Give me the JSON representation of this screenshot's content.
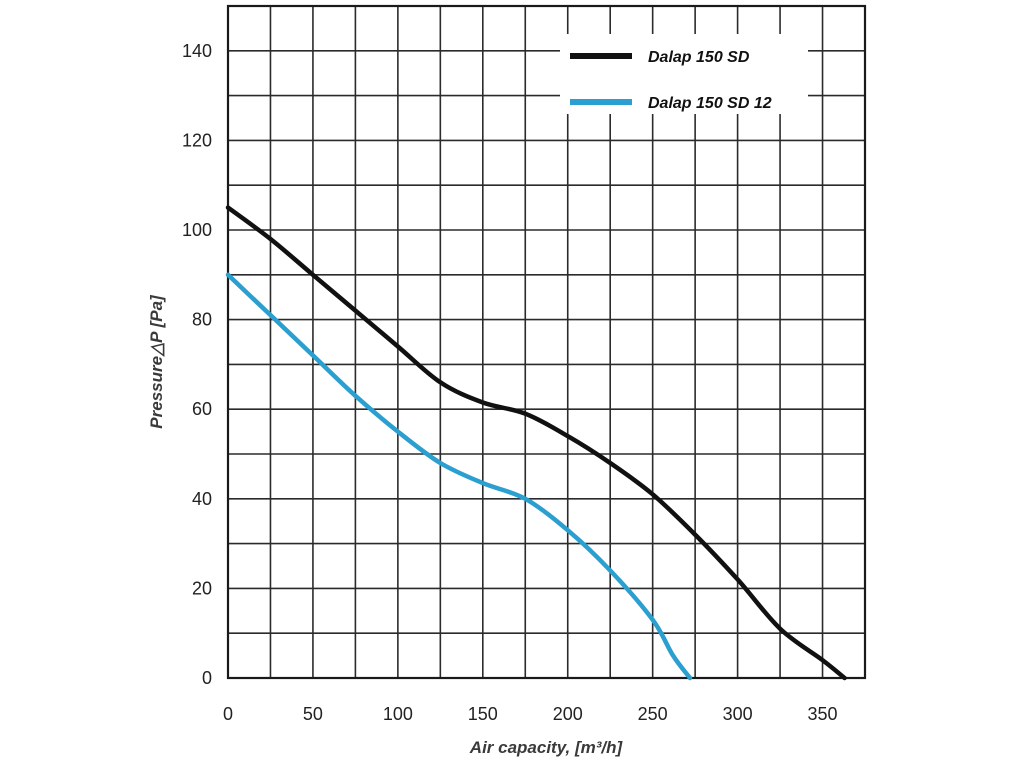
{
  "chart_data": {
    "type": "line",
    "title": "",
    "xlabel": "Air capacity, [m³/h]",
    "ylabel": "Pressure△P [Pa]",
    "xlim": [
      0,
      375
    ],
    "ylim": [
      0,
      150
    ],
    "x_ticks": [
      0,
      50,
      100,
      150,
      200,
      250,
      300,
      350
    ],
    "y_ticks": [
      0,
      20,
      40,
      60,
      80,
      100,
      120,
      140
    ],
    "grid": true,
    "legend_position": "top-right",
    "series": [
      {
        "name": "Dalap 150 SD",
        "color": "#111111",
        "points": [
          [
            0,
            105
          ],
          [
            25,
            98
          ],
          [
            50,
            90
          ],
          [
            75,
            82
          ],
          [
            100,
            74
          ],
          [
            125,
            66
          ],
          [
            150,
            61.5
          ],
          [
            175,
            59
          ],
          [
            200,
            54
          ],
          [
            225,
            48
          ],
          [
            250,
            41
          ],
          [
            275,
            32
          ],
          [
            300,
            22
          ],
          [
            325,
            11
          ],
          [
            350,
            4
          ],
          [
            363,
            0
          ]
        ]
      },
      {
        "name": "Dalap 150 SD 12",
        "color": "#2a9fd0",
        "points": [
          [
            0,
            90
          ],
          [
            25,
            81
          ],
          [
            50,
            72
          ],
          [
            75,
            63
          ],
          [
            100,
            55
          ],
          [
            125,
            48
          ],
          [
            150,
            43.5
          ],
          [
            175,
            40
          ],
          [
            200,
            33
          ],
          [
            225,
            24
          ],
          [
            250,
            13
          ],
          [
            262,
            5
          ],
          [
            272,
            0
          ]
        ]
      }
    ]
  }
}
